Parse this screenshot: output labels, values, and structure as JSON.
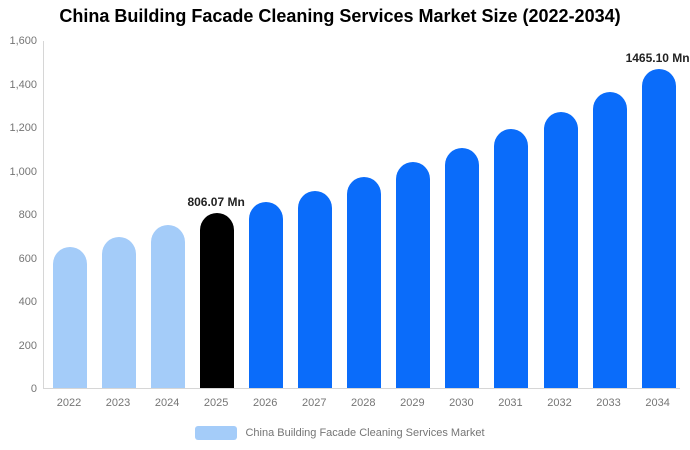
{
  "title": "China Building Facade Cleaning Services Market Size (2022-2034)",
  "legend": {
    "label": "China Building Facade Cleaning Services Market"
  },
  "colors": {
    "historical": "#A4CCF9",
    "base_year": "#000000",
    "forecast": "#0A6CFA",
    "axis_line": "#D6D6D6",
    "tick_text": "#757575",
    "title_text": "#000000",
    "data_label_text": "#222222"
  },
  "chart_data": {
    "type": "bar",
    "title": "China Building Facade Cleaning Services Market Size (2022-2034)",
    "categories": [
      "2022",
      "2023",
      "2024",
      "2025",
      "2026",
      "2027",
      "2028",
      "2029",
      "2030",
      "2031",
      "2032",
      "2033",
      "2034"
    ],
    "values": [
      650,
      695,
      750,
      806.07,
      855,
      905,
      970,
      1040,
      1105,
      1190,
      1270,
      1360,
      1465.1
    ],
    "unit": "Mn",
    "xlabel": "",
    "ylabel": "",
    "ylim": [
      0,
      1600
    ],
    "ytick_step": 200,
    "ytick_labels": [
      "0",
      "200",
      "400",
      "600",
      "800",
      "1,000",
      "1,200",
      "1,400",
      "1,600"
    ],
    "grid": false,
    "legend_position": "bottom",
    "point_roles": [
      "historical",
      "historical",
      "historical",
      "base_year",
      "forecast",
      "forecast",
      "forecast",
      "forecast",
      "forecast",
      "forecast",
      "forecast",
      "forecast",
      "forecast"
    ],
    "data_labels": [
      {
        "index": 3,
        "text": "806.07 Mn"
      },
      {
        "index": 12,
        "text": "1465.10 Mn"
      }
    ]
  }
}
